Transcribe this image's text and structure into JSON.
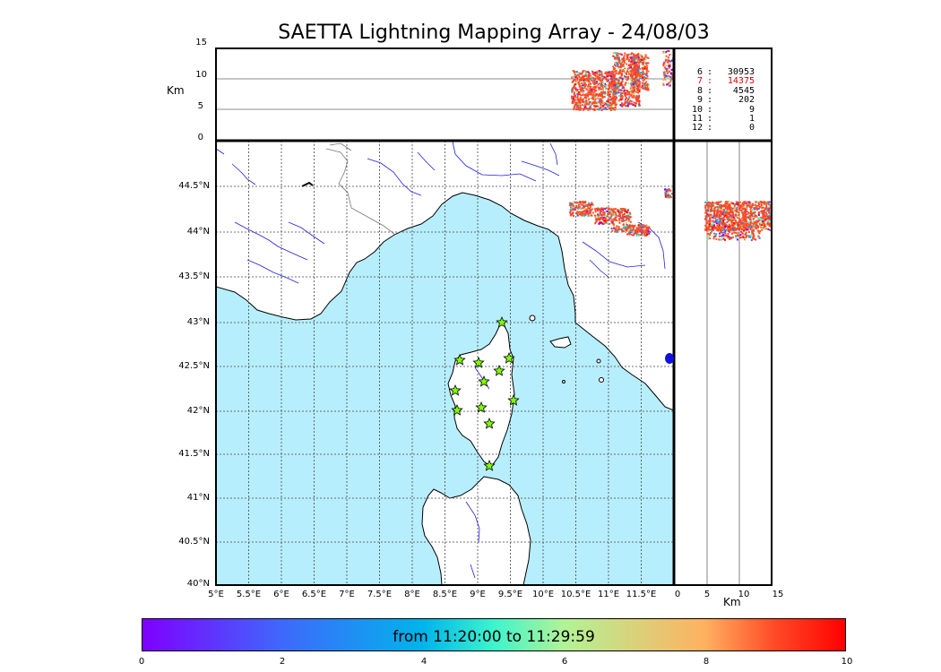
{
  "title": "SAETTA Lightning Mapping Array - 24/08/03",
  "altitude_panel": {
    "y_unit": "Km",
    "y_ticks": [
      "15",
      "10",
      "5",
      "0"
    ]
  },
  "map": {
    "lat_labels": [
      "44.5°N",
      "44°N",
      "43.5°N",
      "43°N",
      "42.5°N",
      "42°N",
      "41.5°N",
      "41°N",
      "40.5°N",
      "40°N"
    ],
    "lon_labels": [
      "5°E",
      "5.5°E",
      "6°E",
      "6.5°E",
      "7°E",
      "7.5°E",
      "8°E",
      "8.5°E",
      "9°E",
      "9.5°E",
      "10°E",
      "10.5°E",
      "11°E",
      "11.5°E"
    ],
    "sea_color": "#b7eefd",
    "coast_color": "#000000",
    "river_color": "#1f1fe0"
  },
  "side_panel": {
    "x_unit": "Km",
    "x_ticks": [
      "0",
      "5",
      "10",
      "15"
    ]
  },
  "station_counts": [
    {
      "stations": "6",
      "count": "30953",
      "highlight": false
    },
    {
      "stations": "7",
      "count": "14375",
      "highlight": true
    },
    {
      "stations": "8",
      "count": "4545",
      "highlight": false
    },
    {
      "stations": "9",
      "count": "202",
      "highlight": false
    },
    {
      "stations": "10",
      "count": "9",
      "highlight": false
    },
    {
      "stations": "11",
      "count": "1",
      "highlight": false
    },
    {
      "stations": "12",
      "count": "0",
      "highlight": false
    }
  ],
  "colorbar": {
    "label": "from 11:20:00 to 11:29:59",
    "ticks": [
      "0",
      "2",
      "4",
      "6",
      "8",
      "10"
    ],
    "gradient": [
      "#7f00ff",
      "#00b5eb",
      "#3df4cc",
      "#ffb160",
      "#ff0000"
    ]
  },
  "stations": "10 star markers on Corsica",
  "source_color": "#ff4a26"
}
